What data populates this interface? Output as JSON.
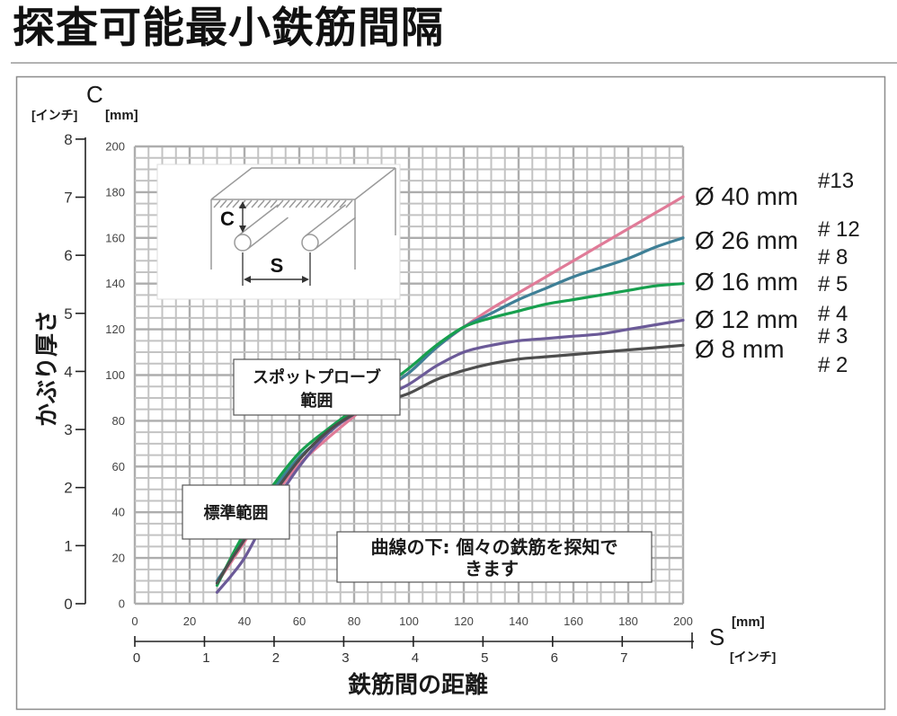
{
  "chart_data": {
    "type": "line",
    "title": "探査可能最小鉄筋間隔",
    "xlabel": "鉄筋間の距離",
    "ylabel": "かぶり厚さ",
    "x_symbol": "S",
    "y_symbol": "C",
    "x_unit": "[mm]",
    "x_unit_alt": "[インチ]",
    "y_unit": "[mm]",
    "y_unit_alt": "[インチ]",
    "xlim": [
      0,
      200
    ],
    "ylim": [
      0,
      200
    ],
    "x_ticks": [
      0,
      20,
      40,
      60,
      80,
      100,
      120,
      140,
      160,
      180,
      200
    ],
    "y_ticks": [
      0,
      20,
      40,
      60,
      80,
      100,
      120,
      140,
      160,
      180,
      200
    ],
    "x_ticks_alt": [
      0,
      1,
      2,
      3,
      4,
      5,
      6,
      7
    ],
    "y_ticks_alt": [
      0,
      1,
      2,
      3,
      4,
      5,
      6,
      7,
      8
    ],
    "grid": true,
    "legend": "right",
    "x": [
      30,
      35,
      40,
      45,
      50,
      60,
      70,
      80,
      90,
      100,
      110,
      120,
      130,
      140,
      150,
      160,
      170,
      180,
      190,
      200
    ],
    "series": [
      {
        "name": "Ø 40 mm",
        "color": "#e07b98",
        "values": [
          9,
          18,
          27,
          37,
          46,
          61,
          72,
          82,
          92,
          101,
          112,
          121,
          129,
          136,
          143,
          150,
          157,
          164,
          171,
          178
        ]
      },
      {
        "name": "Ø 26 mm",
        "color": "#3e7f96",
        "values": [
          10,
          19,
          29,
          39,
          49,
          64,
          74,
          84,
          93,
          101,
          112,
          121,
          127,
          133,
          138,
          143,
          147,
          151,
          156,
          160
        ]
      },
      {
        "name": "Ø 16 mm",
        "color": "#17a04e",
        "values": [
          8,
          20,
          31,
          41,
          51,
          66,
          76,
          85,
          94,
          103,
          113,
          121,
          125,
          128,
          131,
          133,
          135,
          137,
          139,
          140
        ]
      },
      {
        "name": "Ø 12 mm",
        "color": "#6b5a98",
        "values": [
          5,
          12,
          20,
          31,
          42,
          60,
          74,
          83,
          90,
          96,
          104,
          110,
          113,
          115,
          116,
          117,
          118,
          120,
          122,
          124
        ]
      },
      {
        "name": "Ø 8 mm",
        "color": "#4d4d4d",
        "values": [
          9,
          19,
          28,
          38,
          47,
          63,
          75,
          83,
          88,
          92,
          98,
          102,
          105,
          107,
          108,
          109,
          110,
          111,
          112,
          113
        ]
      }
    ],
    "bar_size_labels": [
      "#13",
      "# 12",
      "# 8",
      "# 5",
      "# 4",
      "# 3",
      "# 2"
    ],
    "annotations": {
      "spot_probe_range": [
        "スポットプローブ",
        "範囲"
      ],
      "standard_range": "標準範囲",
      "below_curve": [
        "曲線の下: 個々の鉄筋を探知で",
        "きます"
      ]
    },
    "inset": {
      "cover_label": "C",
      "spacing_label": "S"
    }
  }
}
